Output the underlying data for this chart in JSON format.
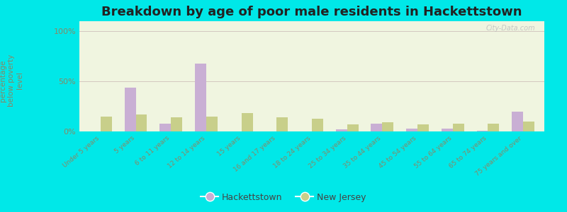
{
  "title": "Breakdown by age of poor male residents in Hackettstown",
  "ylabel": "percentage\nbelow poverty\nlevel",
  "categories": [
    "Under 5 years",
    "5 years",
    "6 to 11 years",
    "12 to 14 years",
    "15 years",
    "16 and 17 years",
    "18 to 24 years",
    "25 to 34 years",
    "35 to 44 years",
    "45 to 54 years",
    "55 to 64 years",
    "65 to 74 years",
    "75 years and over"
  ],
  "hackettstown_values": [
    0,
    44,
    8,
    68,
    0,
    0,
    0,
    2,
    8,
    3,
    3,
    1,
    20
  ],
  "newjersey_values": [
    15,
    17,
    14,
    15,
    18,
    14,
    13,
    7,
    9,
    7,
    8,
    8,
    10
  ],
  "hackettstown_color": "#c9afd4",
  "newjersey_color": "#c8cf8a",
  "plot_bg": "#f0f5e0",
  "outer_bg": "#00e8e8",
  "yticks": [
    0,
    50,
    100
  ],
  "ylim": [
    0,
    110
  ],
  "title_fontsize": 13,
  "axis_color": "#888866",
  "legend_hackettstown": "Hackettstown",
  "legend_newjersey": "New Jersey"
}
